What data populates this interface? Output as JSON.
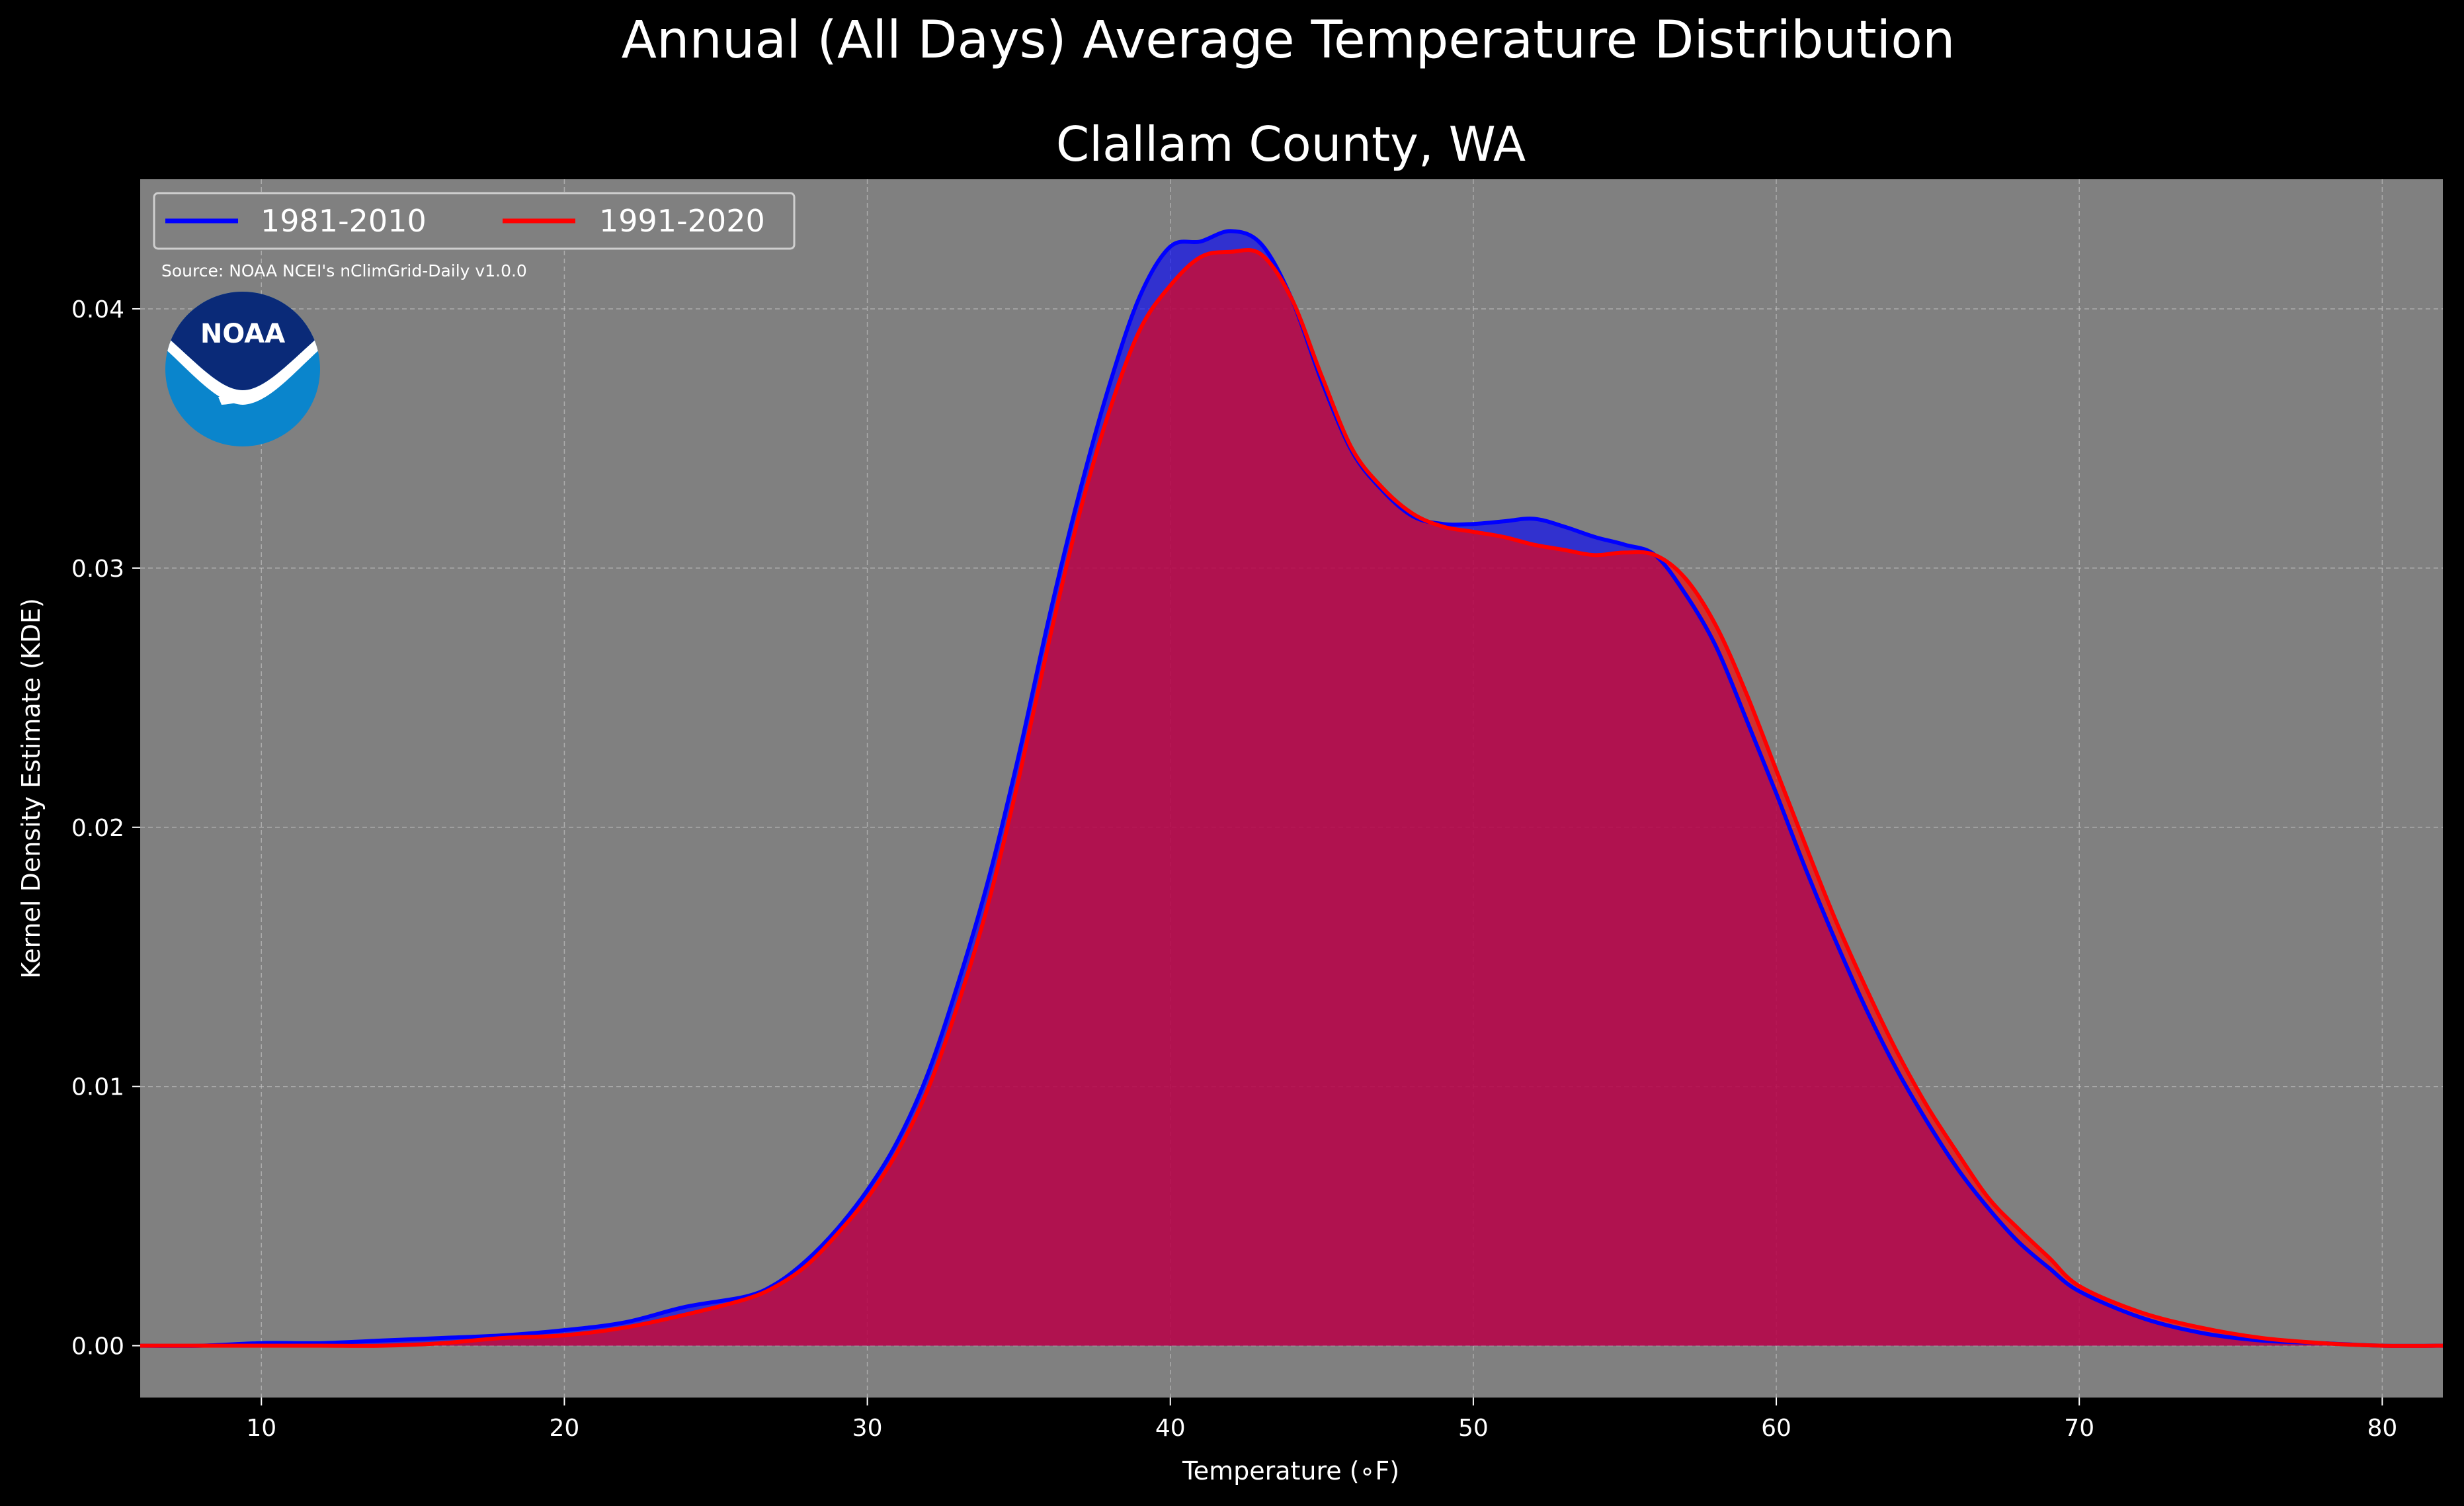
{
  "chart_data": {
    "type": "area",
    "title": "Annual (All Days) Average Temperature Distribution",
    "subtitle": "Clallam County, WA",
    "xlabel": "Temperature (∘F)",
    "ylabel": "Kernel Density Estimate (KDE)",
    "source": "Source: NOAA NCEI's nClimGrid-Daily v1.0.0",
    "logo_text": "NOAA",
    "xlim": [
      6,
      82
    ],
    "ylim": [
      -0.002,
      0.045
    ],
    "xticks": [
      10,
      20,
      30,
      40,
      50,
      60,
      70,
      80
    ],
    "xtick_labels": [
      "10",
      "20",
      "30",
      "40",
      "50",
      "60",
      "70",
      "80"
    ],
    "yticks": [
      0.0,
      0.01,
      0.02,
      0.03,
      0.04
    ],
    "ytick_labels": [
      "0.00",
      "0.01",
      "0.02",
      "0.03",
      "0.04"
    ],
    "grid": true,
    "legend_position": "top-left",
    "background_color": "#808080",
    "series": [
      {
        "name": "1981-2010",
        "color": "#0000ff",
        "x": [
          6,
          8,
          10,
          12,
          14,
          16,
          18,
          20,
          22,
          24,
          26,
          27,
          28,
          29,
          30,
          31,
          32,
          33,
          34,
          35,
          36,
          37,
          38,
          39,
          40,
          41,
          42,
          43,
          44,
          45,
          46,
          47,
          48,
          49,
          50,
          51,
          52,
          53,
          54,
          55,
          56,
          57,
          58,
          59,
          60,
          61,
          62,
          63,
          64,
          65,
          66,
          67,
          68,
          69,
          70,
          72,
          74,
          76,
          78,
          80,
          82
        ],
        "values": [
          0.0,
          0.0,
          0.0001,
          0.0001,
          0.0002,
          0.0003,
          0.0004,
          0.0006,
          0.0009,
          0.0015,
          0.0019,
          0.0024,
          0.0033,
          0.0045,
          0.006,
          0.0079,
          0.0105,
          0.014,
          0.018,
          0.0228,
          0.0281,
          0.0329,
          0.0371,
          0.0405,
          0.0424,
          0.0426,
          0.043,
          0.0425,
          0.0404,
          0.0372,
          0.0345,
          0.033,
          0.032,
          0.0317,
          0.0317,
          0.0318,
          0.0319,
          0.0316,
          0.0312,
          0.0309,
          0.0305,
          0.029,
          0.027,
          0.0242,
          0.0213,
          0.0183,
          0.0155,
          0.0129,
          0.0106,
          0.0086,
          0.0068,
          0.0053,
          0.004,
          0.003,
          0.0021,
          0.0011,
          0.0005,
          0.0002,
          0.0001,
          0.0,
          0.0
        ]
      },
      {
        "name": "1991-2020",
        "color": "#ff0000",
        "x": [
          6,
          8,
          10,
          12,
          14,
          16,
          18,
          20,
          22,
          24,
          26,
          27,
          28,
          29,
          30,
          31,
          32,
          33,
          34,
          35,
          36,
          37,
          38,
          39,
          40,
          41,
          42,
          43,
          44,
          45,
          46,
          47,
          48,
          49,
          50,
          51,
          52,
          53,
          54,
          55,
          56,
          57,
          58,
          59,
          60,
          61,
          62,
          63,
          64,
          65,
          66,
          67,
          68,
          69,
          70,
          72,
          74,
          76,
          78,
          80,
          82
        ],
        "values": [
          0.0,
          0.0,
          0.0,
          0.0,
          0.0,
          0.0001,
          0.0003,
          0.0004,
          0.0007,
          0.0012,
          0.0018,
          0.0023,
          0.0031,
          0.0043,
          0.0057,
          0.0075,
          0.0099,
          0.0132,
          0.0171,
          0.0219,
          0.0272,
          0.0321,
          0.0361,
          0.0392,
          0.0409,
          0.042,
          0.0422,
          0.0421,
          0.0404,
          0.0374,
          0.0346,
          0.0331,
          0.0321,
          0.0316,
          0.0314,
          0.0312,
          0.0309,
          0.0307,
          0.0305,
          0.0306,
          0.0305,
          0.0296,
          0.0278,
          0.0252,
          0.0222,
          0.0192,
          0.0163,
          0.0137,
          0.0113,
          0.0092,
          0.0074,
          0.0057,
          0.0045,
          0.0034,
          0.0023,
          0.0013,
          0.0007,
          0.0003,
          0.0001,
          0.0,
          0.0
        ]
      }
    ]
  }
}
